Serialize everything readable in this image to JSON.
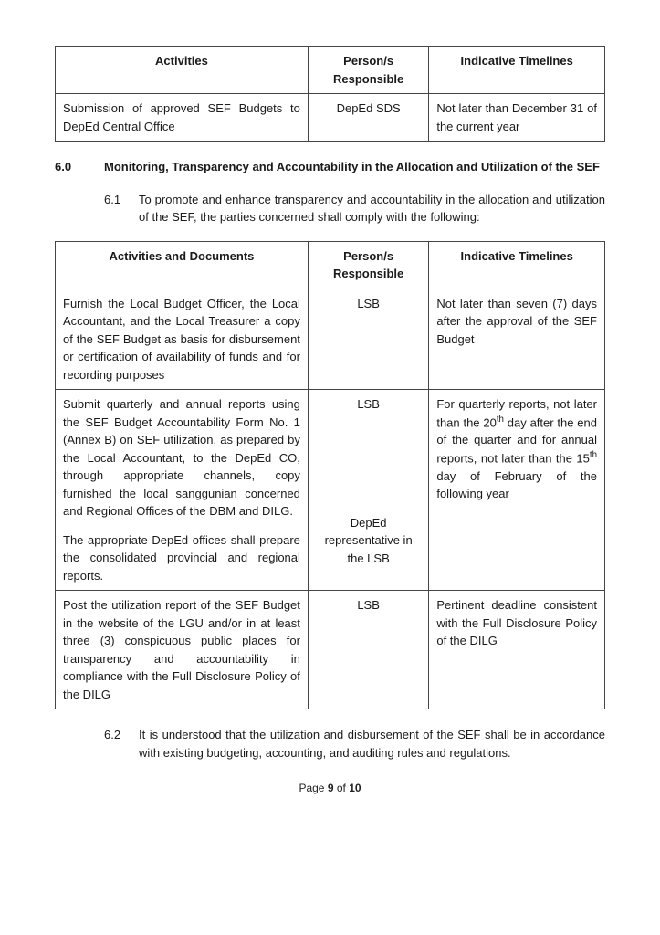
{
  "table1": {
    "headers": [
      "Activities",
      "Person/s Responsible",
      "Indicative Timelines"
    ],
    "rows": [
      {
        "activity": "Submission of approved SEF Budgets to DepEd Central Office",
        "responsible": "DepEd SDS",
        "timeline": "Not later than December 31 of the current year"
      }
    ]
  },
  "section": {
    "number": "6.0",
    "title": "Monitoring, Transparency and Accountability in the Allocation and Utilization of the SEF"
  },
  "para61": {
    "number": "6.1",
    "text": "To promote and enhance transparency and accountability in the allocation and utilization of the SEF, the parties concerned shall comply with the following:"
  },
  "table2": {
    "headers": [
      "Activities and Documents",
      "Person/s Responsible",
      "Indicative Timelines"
    ],
    "rows": [
      {
        "activity": "Furnish the Local Budget Officer, the Local Accountant, and the Local Treasurer a copy of the SEF Budget as basis for disbursement or certification of availability of funds and for recording purposes",
        "responsible": "LSB",
        "timeline": "Not later than seven (7) days after the approval of the SEF Budget"
      },
      {
        "activity": "Submit quarterly and annual reports using the SEF Budget Accountability Form No. 1 (Annex B) on SEF utilization, as prepared by the Local Accountant, to the DepEd CO, through appropriate channels, copy furnished the local sanggunian concerned and Regional Offices of the DBM and DILG.",
        "responsible": "LSB",
        "timeline_html": "For quarterly reports, not later than the 20<sup>th</sup> day after the end of the quarter and for annual reports, not later than the 15<sup>th</sup> day of February of the following year",
        "activity2": "The appropriate DepEd offices shall prepare the consolidated provincial and regional reports.",
        "responsible2": "DepEd representative in the LSB"
      },
      {
        "activity": "Post the utilization report of the SEF Budget in the website of the LGU and/or in at least three (3) conspicuous public places for transparency and accountability in compliance with the Full Disclosure Policy of the DILG",
        "responsible": "LSB",
        "timeline": "Pertinent deadline consistent with the Full Disclosure Policy of the DILG"
      }
    ]
  },
  "para62": {
    "number": "6.2",
    "text": "It is understood that the utilization and disbursement of the SEF shall be in accordance with existing budgeting, accounting, and auditing rules and regulations."
  },
  "footer": {
    "prefix": "Page ",
    "current": "9",
    "of": " of ",
    "total": "10"
  }
}
